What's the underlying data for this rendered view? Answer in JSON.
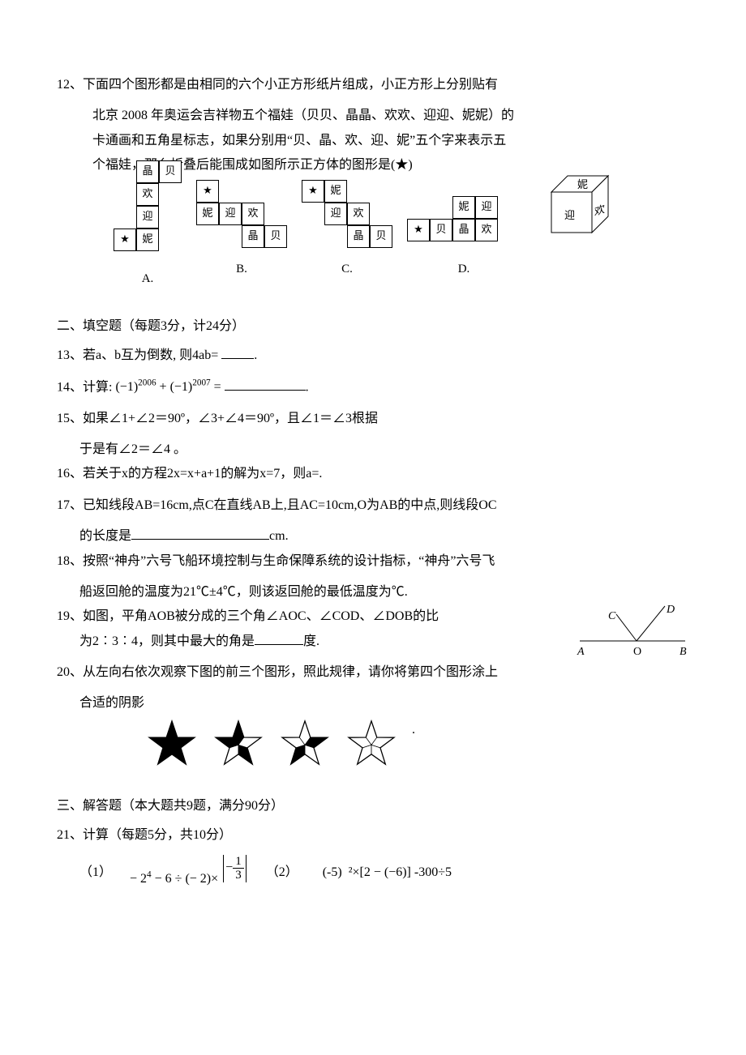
{
  "q12": {
    "num": "12、",
    "line1": "下面四个图形都是由相同的六个小正方形纸片组成，小正方形上分别贴有",
    "line2": "北京 2008 年奥运会吉祥物五个福娃（贝贝、晶晶、欢欢、迎迎、妮妮）的",
    "line3": "卡通画和五角星标志，如果分别用“贝、晶、欢、迎、妮”五个字来表示五",
    "line4": "个福娃，那么折叠后能围成如图所示正方体的图形是(★)",
    "optionA": "A.",
    "optionB": "B.",
    "optionC": "C.",
    "optionD": "D.",
    "labels": {
      "bei": "贝",
      "jing": "晶",
      "huan": "欢",
      "ying": "迎",
      "ni": "妮",
      "star": "★"
    },
    "cube": {
      "top": "妮",
      "front": "迎",
      "right": "欢"
    }
  },
  "section2": "二、填空题（每题3分，计24分）",
  "q13": {
    "num": "13、",
    "text_a": "若a、b互为倒数, 则4ab= ",
    "text_b": "."
  },
  "q14": {
    "num": "14、",
    "text_a": "计算:",
    "expr_l": "(−1)",
    "exp1": "2006",
    "plus": " + ",
    "expr_r": "(−1)",
    "exp2": "2007",
    "eq": " = ",
    "end": "."
  },
  "q15": {
    "num": "15、",
    "line1": "如果∠1+∠2＝90º，∠3+∠4＝90º，且∠1＝∠3根据",
    "line2": "于是有∠2＝∠4 。"
  },
  "q16": {
    "num": "16、",
    "text": "若关于x的方程2x=x+a+1的解为x=7，则a=."
  },
  "q17": {
    "num": "17、",
    "line1": "已知线段AB=16cm,点C在直线AB上,且AC=10cm,O为AB的中点,则线段OC",
    "line2": "的长度是",
    "unit": "cm."
  },
  "q18": {
    "num": "18、",
    "line1": "按照“神舟”六号飞船环境控制与生命保障系统的设计指标，“神舟”六号飞",
    "line2": "船返回舱的温度为21℃±4℃，则该返回舱的最低温度为℃."
  },
  "q19": {
    "num": "19、",
    "line1_a": "如图，平角AOB被分成的三个角∠AOC、∠COD、∠DOB的比",
    "line2_a": "为2︰3︰4，则其中最大的角是",
    "line2_b": "度.",
    "labels": {
      "A": "A",
      "O": "O",
      "B": "B",
      "C": "C",
      "D": "D"
    }
  },
  "q20": {
    "num": "20、",
    "line1": "从左向右依次观察下图的前三个图形，照此规律，请你将第四个图形涂上",
    "line2": "合适的阴影",
    "dot": "."
  },
  "section3": "三、解答题（本大题共9题，满分90分）",
  "q21": {
    "num": "21、",
    "title": "计算（每题5分，共10分）",
    "p1_label": "（1）",
    "p1_a": "− 2",
    "p1_exp": "4",
    "p1_b": " − 6 ÷ (− 2)× ",
    "abs_inner_neg": "−",
    "frac_num": "1",
    "frac_den": "3",
    "p2_label": "（2）",
    "p2": "  (-5)  ²×[2 − (−6)] -300÷5"
  },
  "stars": {
    "outline": "#000000",
    "fills": [
      [
        true,
        true,
        true,
        true,
        true
      ],
      [
        true,
        false,
        true,
        false,
        true
      ],
      [
        false,
        true,
        false,
        true,
        false
      ],
      [
        false,
        false,
        false,
        false,
        false
      ]
    ]
  },
  "colors": {
    "text": "#000000",
    "bg": "#ffffff"
  }
}
